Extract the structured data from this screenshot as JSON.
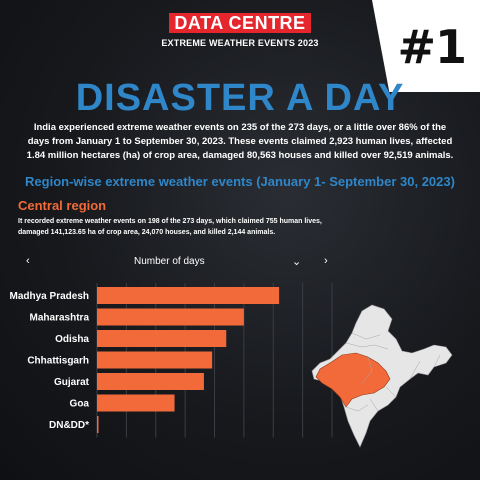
{
  "logo": {
    "title": "DATA CENTRE",
    "subtitle": "EXTREME WEATHER EVENTS 2023"
  },
  "rank": "#1",
  "headline": "DISASTER A DAY",
  "intro": "India experienced extreme weather events on 235 of the 273 days, or a little over 86% of the days from January 1 to September 30, 2023. These events claimed 2,923 human lives, affected 1.84 million hectares (ha) of crop area, damaged 80,563 houses and killed over 92,519 animals.",
  "region_title": "Region-wise extreme weather events (January 1- September 30, 2023)",
  "central_region": {
    "title": "Central region",
    "description": "It recorded extreme weather events on 198 of the 273 days, which claimed 755 human lives, damaged 141,123.65 ha of crop area, 24,070 houses, and killed 2,144 animals."
  },
  "selector": {
    "label": "Number of days",
    "prev_icon": "chevron-left-icon",
    "dropdown_icon": "chevron-down-icon",
    "next_icon": "chevron-right-icon"
  },
  "colors": {
    "bar": "#f26a3a",
    "accent_blue": "#2f86c8",
    "highlight_region": "#f26a3a",
    "map_base": "#e6e6e6"
  },
  "chart_data": {
    "type": "bar",
    "orientation": "horizontal",
    "categories": [
      "Madhya Pradesh",
      "Maharashtra",
      "Odisha",
      "Chhattisgarh",
      "Gujarat",
      "Goa",
      "DN&DD*"
    ],
    "values": [
      155,
      125,
      110,
      98,
      91,
      66,
      1
    ],
    "xlim": [
      0,
      200
    ],
    "grid": true,
    "ylabel": "",
    "xlabel": ""
  }
}
